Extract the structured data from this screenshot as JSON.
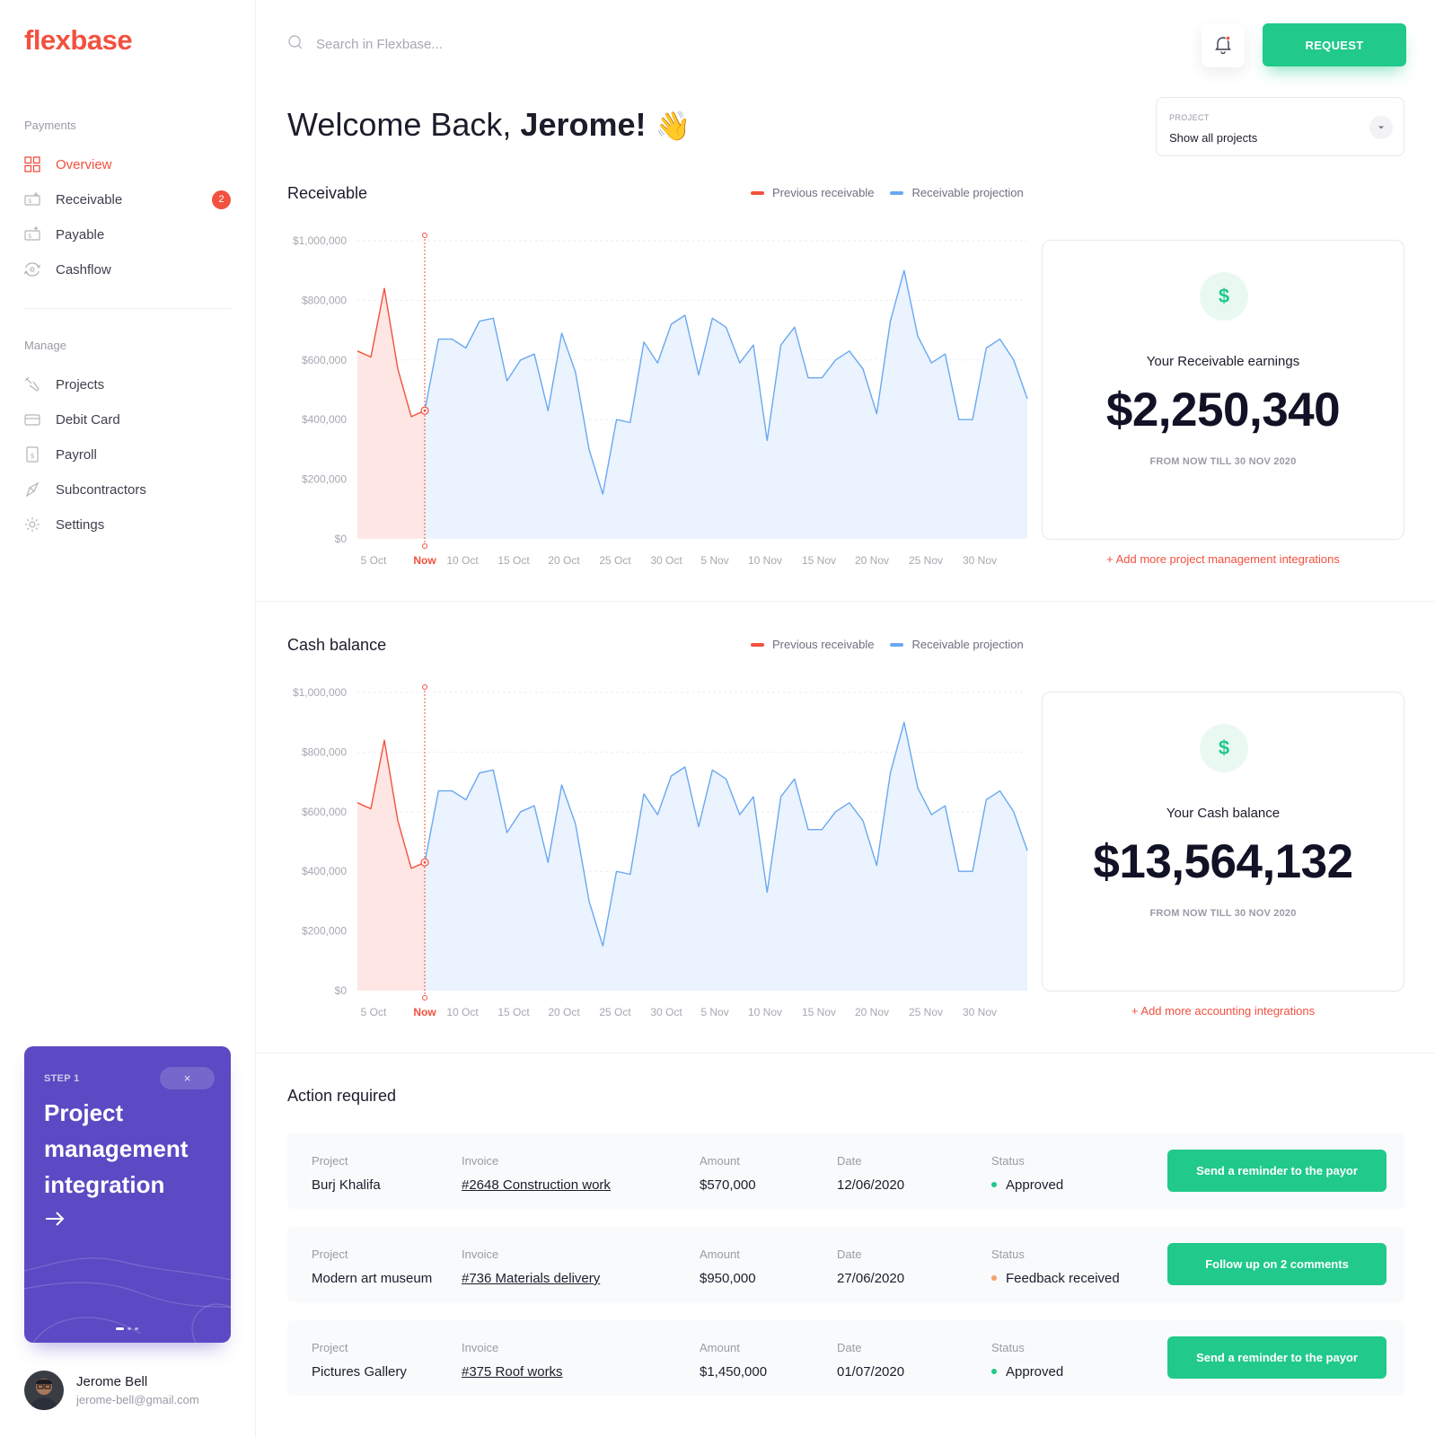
{
  "app": {
    "logo": "flexbase"
  },
  "sidebar": {
    "payments_title": "Payments",
    "payments_items": [
      {
        "label": "Overview",
        "icon": "grid-icon"
      },
      {
        "label": "Receivable",
        "icon": "receivable-icon",
        "badge": "2"
      },
      {
        "label": "Payable",
        "icon": "payable-icon"
      },
      {
        "label": "Cashflow",
        "icon": "cashflow-icon"
      }
    ],
    "manage_title": "Manage",
    "manage_items": [
      {
        "label": "Projects",
        "icon": "projects-icon"
      },
      {
        "label": "Debit Card",
        "icon": "card-icon"
      },
      {
        "label": "Payroll",
        "icon": "payroll-icon"
      },
      {
        "label": "Subcontractors",
        "icon": "subcontractors-icon"
      },
      {
        "label": "Settings",
        "icon": "settings-icon"
      }
    ],
    "promo": {
      "step": "STEP 1",
      "close": "×",
      "title": "Project management integration",
      "arrow": "→"
    },
    "user": {
      "name": "Jerome Bell",
      "email": "jerome-bell@gmail.com"
    }
  },
  "header": {
    "search_placeholder": "Search in Flexbase...",
    "request_label": "REQUEST"
  },
  "welcome": {
    "prefix": "Welcome Back, ",
    "name": "Jerome!",
    "emoji": "👋"
  },
  "project_select": {
    "label": "PROJECT",
    "value": "Show all projects"
  },
  "colors": {
    "accent": "#f2513f",
    "green": "#21c98b",
    "blue": "#6aa8f0",
    "purple": "#5b4ac3"
  },
  "receivable": {
    "title": "Receivable",
    "card_label": "Your Receivable earnings",
    "card_amount": "$2,250,340",
    "card_sub": "FROM NOW TILL 30 NOV 2020",
    "link": "+ Add more project management integrations"
  },
  "cash": {
    "title": "Cash balance",
    "card_label": "Your Cash balance",
    "card_amount": "$13,564,132",
    "card_sub": "FROM NOW TILL 30 NOV 2020",
    "link": "+ Add more accounting integrations"
  },
  "legend": {
    "previous": "Previous receivable",
    "projection": "Receivable projection"
  },
  "chart_data": [
    {
      "type": "area",
      "title": "Receivable",
      "yticks": [
        "$1,000,000",
        "$800,000",
        "$600,000",
        "$400,000",
        "$200,000",
        "$0"
      ],
      "ylim": [
        0,
        1000000
      ],
      "xticks": [
        "5 Oct",
        "Now",
        "10 Oct",
        "15 Oct",
        "20 Oct",
        "25 Oct",
        "30 Oct",
        "5 Nov",
        "10 Nov",
        "15 Nov",
        "20 Nov",
        "25 Nov",
        "30 Nov"
      ],
      "series": [
        {
          "name": "Previous receivable",
          "color": "#f2513f",
          "values": [
            630000,
            610000,
            840000,
            570000,
            410000,
            430000
          ]
        },
        {
          "name": "Receivable projection",
          "color": "#6aa8f0",
          "values": [
            430000,
            670000,
            670000,
            640000,
            730000,
            740000,
            530000,
            600000,
            620000,
            430000,
            690000,
            560000,
            300000,
            150000,
            400000,
            390000,
            660000,
            590000,
            720000,
            750000,
            550000,
            740000,
            710000,
            590000,
            650000,
            330000,
            650000,
            710000,
            540000,
            540000,
            600000,
            630000,
            570000,
            420000,
            730000,
            900000,
            680000,
            590000,
            620000,
            400000,
            400000,
            640000,
            670000,
            600000,
            470000
          ]
        }
      ],
      "grid": true,
      "legend": "top-right"
    },
    {
      "type": "area",
      "title": "Cash balance",
      "yticks": [
        "$1,000,000",
        "$800,000",
        "$600,000",
        "$400,000",
        "$200,000",
        "$0"
      ],
      "ylim": [
        0,
        1000000
      ],
      "xticks": [
        "5 Oct",
        "Now",
        "10 Oct",
        "15 Oct",
        "20 Oct",
        "25 Oct",
        "30 Oct",
        "5 Nov",
        "10 Nov",
        "15 Nov",
        "20 Nov",
        "25 Nov",
        "30 Nov"
      ],
      "series": [
        {
          "name": "Previous receivable",
          "color": "#f2513f",
          "values": [
            630000,
            610000,
            840000,
            570000,
            410000,
            430000
          ]
        },
        {
          "name": "Receivable projection",
          "color": "#6aa8f0",
          "values": [
            430000,
            670000,
            670000,
            640000,
            730000,
            740000,
            530000,
            600000,
            620000,
            430000,
            690000,
            560000,
            300000,
            150000,
            400000,
            390000,
            660000,
            590000,
            720000,
            750000,
            550000,
            740000,
            710000,
            590000,
            650000,
            330000,
            650000,
            710000,
            540000,
            540000,
            600000,
            630000,
            570000,
            420000,
            730000,
            900000,
            680000,
            590000,
            620000,
            400000,
            400000,
            640000,
            670000,
            600000,
            470000
          ]
        }
      ],
      "grid": true,
      "legend": "top-right"
    }
  ],
  "action": {
    "title": "Action required",
    "headers": {
      "project": "Project",
      "invoice": "Invoice",
      "amount": "Amount",
      "date": "Date",
      "status": "Status"
    },
    "rows": [
      {
        "project": "Burj Khalifa",
        "invoice": "#2648 Construction work",
        "amount": "$570,000",
        "date": "12/06/2020",
        "status": "Approved",
        "status_color": "#21c98b",
        "button": "Send a reminder to the payor"
      },
      {
        "project": "Modern art museum",
        "invoice": "#736 Materials delivery",
        "amount": "$950,000",
        "date": "27/06/2020",
        "status": "Feedback received",
        "status_color": "#f5a16b",
        "button": "Follow up on 2 comments"
      },
      {
        "project": "Pictures Gallery",
        "invoice": "#375 Roof works",
        "amount": "$1,450,000",
        "date": "01/07/2020",
        "status": "Approved",
        "status_color": "#21c98b",
        "button": "Send a reminder to the payor"
      }
    ]
  }
}
